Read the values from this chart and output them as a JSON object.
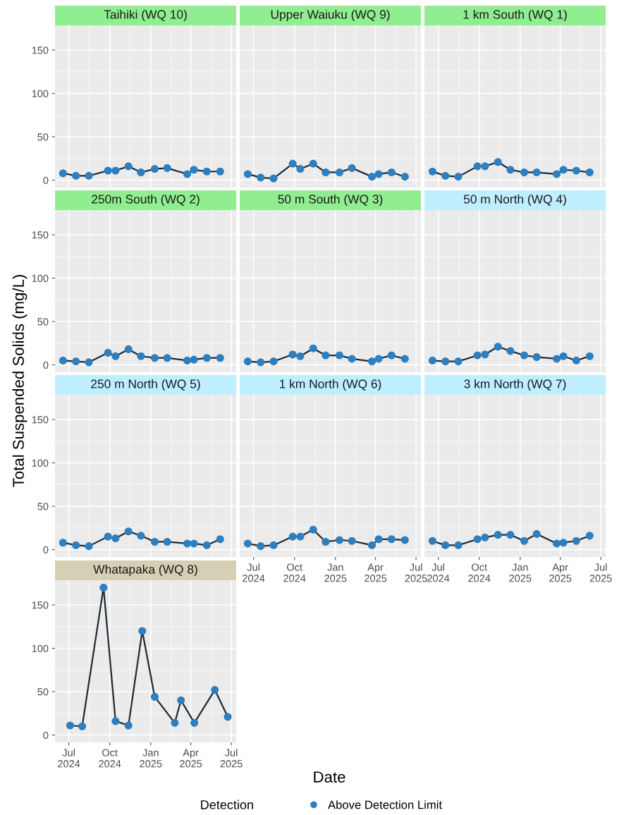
{
  "chart_data": [
    {
      "type": "line",
      "title": "Taihiki (WQ 10)",
      "ylabel": "Total Suspended Solids (mg/L)",
      "xlabel": "Date",
      "legend_title": "Detection",
      "legend": "bottom",
      "grid": true,
      "marker": "circle",
      "tick_labels": "y",
      "xlim": [
        "2024-05-31",
        "2025-07-12"
      ],
      "ylim": [
        -8.5,
        178.5
      ],
      "yticks": [
        0,
        50,
        100,
        150
      ],
      "xticks": [
        {
          "value": "2024-07-01",
          "label": null
        },
        {
          "value": "2024-10-01",
          "label": null
        },
        {
          "value": "2025-01-01",
          "label": null
        },
        {
          "value": "2025-04-01",
          "label": null
        },
        {
          "value": "2025-07-01",
          "label": null
        }
      ],
      "x": [
        "2024-06-18",
        "2024-07-17",
        "2024-08-15",
        "2024-09-27",
        "2024-10-14",
        "2024-11-12",
        "2024-12-10",
        "2025-01-10",
        "2025-02-07",
        "2025-03-24",
        "2025-04-08",
        "2025-05-07",
        "2025-06-06"
      ],
      "series": [
        {
          "name": "Above Detection Limit",
          "color": "#2e7fbf",
          "values": [
            8,
            5,
            5,
            11,
            11,
            16,
            9,
            13,
            14,
            7,
            12,
            10,
            10
          ]
        }
      ]
    },
    {
      "type": "line",
      "title": "Upper Waiuku (WQ 9)",
      "grid": true,
      "marker": "circle",
      "tick_labels": false,
      "xlim": [
        "2024-05-31",
        "2025-07-12"
      ],
      "ylim": [
        -8.5,
        178.5
      ],
      "yticks": [
        0,
        50,
        100,
        150
      ],
      "xticks": [
        {
          "value": "2024-07-01",
          "label": null
        },
        {
          "value": "2024-10-01",
          "label": null
        },
        {
          "value": "2025-01-01",
          "label": null
        },
        {
          "value": "2025-04-01",
          "label": null
        },
        {
          "value": "2025-07-01",
          "label": null
        }
      ],
      "x": [
        "2024-06-18",
        "2024-07-17",
        "2024-08-15",
        "2024-09-27",
        "2024-10-14",
        "2024-11-12",
        "2024-12-10",
        "2025-01-10",
        "2025-02-07",
        "2025-03-24",
        "2025-04-08",
        "2025-05-07",
        "2025-06-06"
      ],
      "series": [
        {
          "color": "#2e7fbf",
          "values": [
            7,
            3,
            2,
            19,
            13,
            19,
            9,
            9,
            14,
            4,
            7,
            9,
            4
          ]
        }
      ]
    },
    {
      "type": "line",
      "title": "1 km South (WQ 1)",
      "grid": true,
      "marker": "circle",
      "tick_labels": false,
      "xlim": [
        "2024-05-31",
        "2025-07-12"
      ],
      "ylim": [
        -8.5,
        178.5
      ],
      "yticks": [
        0,
        50,
        100,
        150
      ],
      "xticks": [
        {
          "value": "2024-07-01",
          "label": null
        },
        {
          "value": "2024-10-01",
          "label": null
        },
        {
          "value": "2025-01-01",
          "label": null
        },
        {
          "value": "2025-04-01",
          "label": null
        },
        {
          "value": "2025-07-01",
          "label": null
        }
      ],
      "x": [
        "2024-06-18",
        "2024-07-17",
        "2024-08-15",
        "2024-09-27",
        "2024-10-14",
        "2024-11-12",
        "2024-12-10",
        "2025-01-10",
        "2025-02-07",
        "2025-03-24",
        "2025-04-08",
        "2025-05-07",
        "2025-06-06"
      ],
      "series": [
        {
          "color": "#2e7fbf",
          "values": [
            10,
            5,
            4,
            16,
            16,
            21,
            12,
            9,
            9,
            7,
            12,
            11,
            9
          ]
        }
      ]
    },
    {
      "type": "line",
      "title": "250m South (WQ 2)",
      "grid": true,
      "marker": "circle",
      "tick_labels": "y",
      "xlim": [
        "2024-05-31",
        "2025-07-12"
      ],
      "ylim": [
        -8.5,
        178.5
      ],
      "yticks": [
        0,
        50,
        100,
        150
      ],
      "xticks": [
        {
          "value": "2024-07-01",
          "label": null
        },
        {
          "value": "2024-10-01",
          "label": null
        },
        {
          "value": "2025-01-01",
          "label": null
        },
        {
          "value": "2025-04-01",
          "label": null
        },
        {
          "value": "2025-07-01",
          "label": null
        }
      ],
      "x": [
        "2024-06-18",
        "2024-07-17",
        "2024-08-15",
        "2024-09-27",
        "2024-10-14",
        "2024-11-12",
        "2024-12-10",
        "2025-01-10",
        "2025-02-07",
        "2025-03-24",
        "2025-04-08",
        "2025-05-07",
        "2025-06-06"
      ],
      "series": [
        {
          "color": "#2e7fbf",
          "values": [
            5,
            4,
            3,
            14,
            10,
            18,
            10,
            8,
            8,
            5,
            6,
            8,
            8
          ]
        }
      ]
    },
    {
      "type": "line",
      "title": "50 m South (WQ 3)",
      "grid": true,
      "marker": "circle",
      "tick_labels": false,
      "xlim": [
        "2024-05-31",
        "2025-07-12"
      ],
      "ylim": [
        -8.5,
        178.5
      ],
      "yticks": [
        0,
        50,
        100,
        150
      ],
      "xticks": [
        {
          "value": "2024-07-01",
          "label": null
        },
        {
          "value": "2024-10-01",
          "label": null
        },
        {
          "value": "2025-01-01",
          "label": null
        },
        {
          "value": "2025-04-01",
          "label": null
        },
        {
          "value": "2025-07-01",
          "label": null
        }
      ],
      "x": [
        "2024-06-18",
        "2024-07-17",
        "2024-08-15",
        "2024-09-27",
        "2024-10-14",
        "2024-11-12",
        "2024-12-10",
        "2025-01-10",
        "2025-02-07",
        "2025-03-24",
        "2025-04-08",
        "2025-05-07",
        "2025-06-06"
      ],
      "series": [
        {
          "color": "#2e7fbf",
          "values": [
            4,
            3,
            4,
            12,
            10,
            19,
            11,
            11,
            7,
            4,
            7,
            11,
            7
          ]
        }
      ]
    },
    {
      "type": "line",
      "title": "50 m North (WQ 4)",
      "grid": true,
      "marker": "circle",
      "tick_labels": false,
      "xlim": [
        "2024-05-31",
        "2025-07-12"
      ],
      "ylim": [
        -8.5,
        178.5
      ],
      "yticks": [
        0,
        50,
        100,
        150
      ],
      "xticks": [
        {
          "value": "2024-07-01",
          "label": null
        },
        {
          "value": "2024-10-01",
          "label": null
        },
        {
          "value": "2025-01-01",
          "label": null
        },
        {
          "value": "2025-04-01",
          "label": null
        },
        {
          "value": "2025-07-01",
          "label": null
        }
      ],
      "x": [
        "2024-06-18",
        "2024-07-17",
        "2024-08-15",
        "2024-09-27",
        "2024-10-14",
        "2024-11-12",
        "2024-12-10",
        "2025-01-10",
        "2025-02-07",
        "2025-03-24",
        "2025-04-08",
        "2025-05-07",
        "2025-06-06"
      ],
      "series": [
        {
          "color": "#2e7fbf",
          "values": [
            5,
            4,
            4,
            11,
            12,
            21,
            16,
            11,
            9,
            7,
            10,
            5,
            10
          ]
        }
      ]
    },
    {
      "type": "line",
      "title": "250 m North (WQ 5)",
      "grid": true,
      "marker": "circle",
      "tick_labels": "y",
      "xlim": [
        "2024-05-31",
        "2025-07-12"
      ],
      "ylim": [
        -8.5,
        178.5
      ],
      "yticks": [
        0,
        50,
        100,
        150
      ],
      "xticks": [
        {
          "value": "2024-07-01",
          "label": null
        },
        {
          "value": "2024-10-01",
          "label": null
        },
        {
          "value": "2025-01-01",
          "label": null
        },
        {
          "value": "2025-04-01",
          "label": null
        },
        {
          "value": "2025-07-01",
          "label": null
        }
      ],
      "x": [
        "2024-06-18",
        "2024-07-17",
        "2024-08-15",
        "2024-09-27",
        "2024-10-14",
        "2024-11-12",
        "2024-12-10",
        "2025-01-10",
        "2025-02-07",
        "2025-03-24",
        "2025-04-08",
        "2025-05-07",
        "2025-06-06"
      ],
      "series": [
        {
          "color": "#2e7fbf",
          "values": [
            8,
            5,
            4,
            15,
            13,
            21,
            16,
            9,
            9,
            7,
            7,
            5,
            12
          ]
        }
      ]
    },
    {
      "type": "line",
      "title": "1 km North (WQ 6)",
      "grid": true,
      "marker": "circle",
      "tick_labels": "x",
      "xlim": [
        "2024-05-31",
        "2025-07-12"
      ],
      "ylim": [
        -8.5,
        178.5
      ],
      "yticks": [
        0,
        50,
        100,
        150
      ],
      "xticks": [
        {
          "value": "2024-07-01",
          "label": "Jul\n2024"
        },
        {
          "value": "2024-10-01",
          "label": "Oct\n2024"
        },
        {
          "value": "2025-01-01",
          "label": "Jan\n2025"
        },
        {
          "value": "2025-04-01",
          "label": "Apr\n2025"
        },
        {
          "value": "2025-07-01",
          "label": "Jul\n2025"
        }
      ],
      "x": [
        "2024-06-18",
        "2024-07-17",
        "2024-08-15",
        "2024-09-27",
        "2024-10-14",
        "2024-11-12",
        "2024-12-10",
        "2025-01-10",
        "2025-02-07",
        "2025-03-24",
        "2025-04-08",
        "2025-05-07",
        "2025-06-06"
      ],
      "series": [
        {
          "color": "#2e7fbf",
          "values": [
            7,
            4,
            5,
            15,
            15,
            23,
            9,
            11,
            10,
            5,
            12,
            12,
            11
          ]
        }
      ]
    },
    {
      "type": "line",
      "title": "3 km North (WQ 7)",
      "grid": true,
      "marker": "circle",
      "tick_labels": "x",
      "xlim": [
        "2024-05-31",
        "2025-07-12"
      ],
      "ylim": [
        -8.5,
        178.5
      ],
      "yticks": [
        0,
        50,
        100,
        150
      ],
      "xticks": [
        {
          "value": "2024-07-01",
          "label": "Jul\n2024"
        },
        {
          "value": "2024-10-01",
          "label": "Oct\n2024"
        },
        {
          "value": "2025-01-01",
          "label": "Jan\n2025"
        },
        {
          "value": "2025-04-01",
          "label": "Apr\n2025"
        },
        {
          "value": "2025-07-01",
          "label": "Jul\n2025"
        }
      ],
      "x": [
        "2024-06-18",
        "2024-07-17",
        "2024-08-15",
        "2024-09-27",
        "2024-10-14",
        "2024-11-12",
        "2024-12-10",
        "2025-01-10",
        "2025-02-07",
        "2025-03-24",
        "2025-04-08",
        "2025-05-07",
        "2025-06-06"
      ],
      "series": [
        {
          "color": "#2e7fbf",
          "values": [
            10,
            5,
            5,
            12,
            14,
            17,
            17,
            10,
            18,
            7,
            8,
            10,
            16
          ]
        }
      ]
    },
    {
      "type": "line",
      "title": "Whatapaka (WQ 8)",
      "grid": true,
      "marker": "circle",
      "xlim": [
        "2024-05-31",
        "2025-07-12"
      ],
      "ylim": [
        -8.5,
        178.5
      ],
      "yticks": [
        0,
        50,
        100,
        150
      ],
      "xticks": [
        {
          "value": "2024-07-01",
          "label": "Jul\n2024"
        },
        {
          "value": "2024-10-01",
          "label": "Oct\n2024"
        },
        {
          "value": "2025-01-01",
          "label": "Jan\n2025"
        },
        {
          "value": "2025-04-01",
          "label": "Apr\n2025"
        },
        {
          "value": "2025-07-01",
          "label": "Jul\n2025"
        }
      ],
      "x": [
        "2024-07-04",
        "2024-07-31",
        "2024-09-17",
        "2024-10-14",
        "2024-11-12",
        "2024-12-13",
        "2025-01-10",
        "2025-02-24",
        "2025-03-10",
        "2025-04-09",
        "2025-05-25",
        "2025-06-23"
      ],
      "series": [
        {
          "color": "#2e7fbf",
          "values": [
            11,
            10,
            170,
            16,
            11,
            120,
            44,
            14,
            40,
            14,
            52,
            21
          ]
        }
      ]
    }
  ]
}
